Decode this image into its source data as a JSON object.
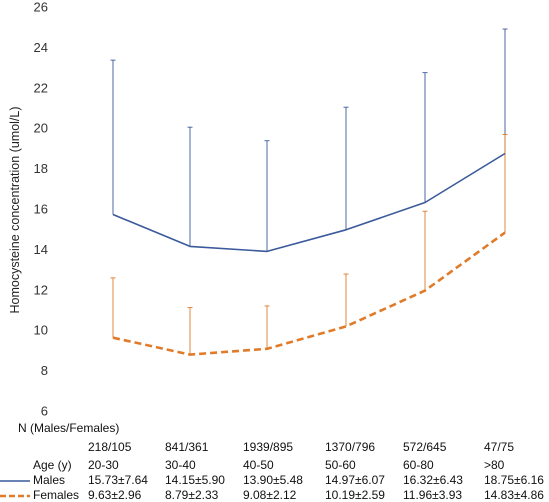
{
  "chart_data": {
    "type": "line",
    "ylabel": "Homocysteine concentration (umol/L)",
    "ylim": [
      6,
      26
    ],
    "yticks": [
      6,
      8,
      10,
      12,
      14,
      16,
      18,
      20,
      22,
      24,
      26
    ],
    "categories": [
      "20-30",
      "30-40",
      "40-50",
      "50-60",
      "60-80",
      ">80"
    ],
    "series": [
      {
        "name": "Males",
        "color": "#3a5a9b",
        "line_style": "solid",
        "values": [
          15.73,
          14.15,
          13.9,
          14.97,
          16.32,
          18.75
        ],
        "sd": [
          7.64,
          5.9,
          5.48,
          6.07,
          6.43,
          6.16
        ],
        "labels": [
          "15.73±7.64",
          "14.15±5.90",
          "13.90±5.48",
          "14.97±6.07",
          "16.32±6.43",
          "18.75±6.16"
        ]
      },
      {
        "name": "Females",
        "color": "#e07b2a",
        "line_style": "dashed",
        "values": [
          9.63,
          8.79,
          9.08,
          10.19,
          11.96,
          14.83
        ],
        "sd": [
          2.96,
          2.33,
          2.12,
          2.59,
          3.93,
          4.86
        ],
        "labels": [
          "9.63±2.96",
          "8.79±2.33",
          "9.08±2.12",
          "10.19±2.59",
          "11.96±3.93",
          "14.83±4.86"
        ]
      }
    ],
    "table": {
      "n_header": "N (Males/Females)",
      "n_values": [
        "218/105",
        "841/361",
        "1939/895",
        "1370/796",
        "572/645",
        "47/75"
      ],
      "age_header": "Age (y)"
    }
  }
}
